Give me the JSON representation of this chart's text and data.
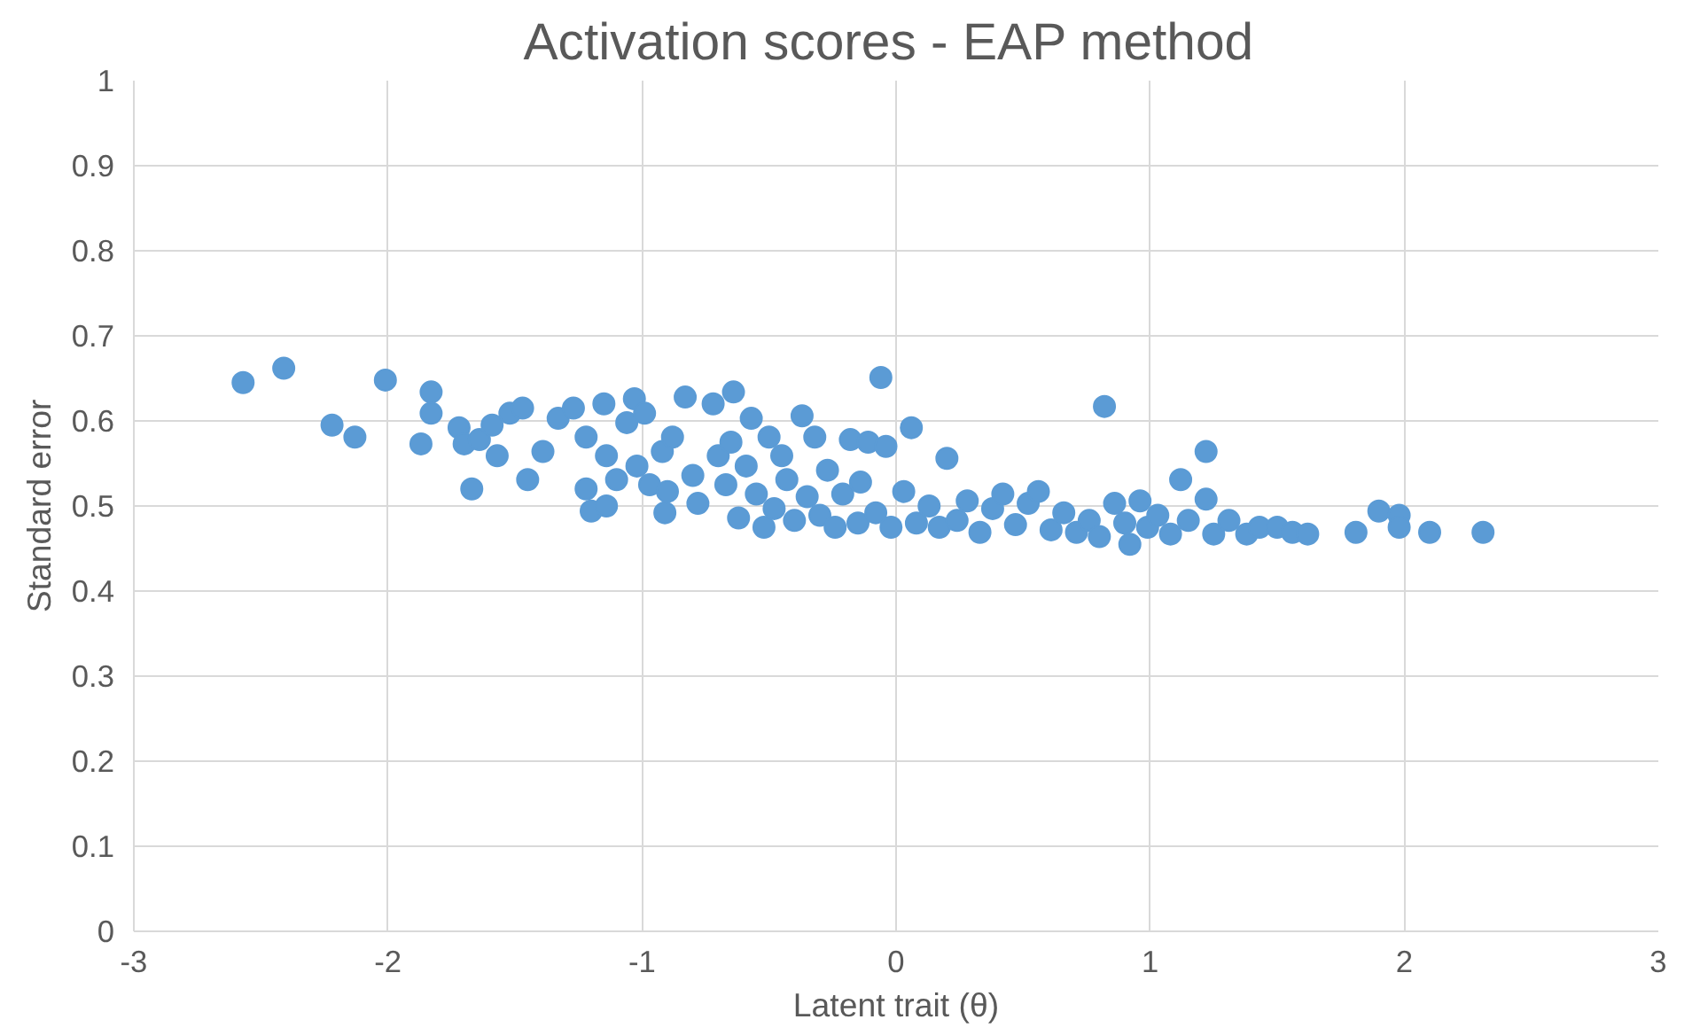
{
  "chart_data": {
    "type": "scatter",
    "title": "Activation scores  - EAP method",
    "xlabel": "Latent trait (θ)",
    "ylabel": "Standard error",
    "xlim": [
      -3,
      3
    ],
    "xticks": [
      -3,
      -2,
      -1,
      0,
      1,
      2,
      3
    ],
    "ylim": [
      0,
      1
    ],
    "yticks": [
      0,
      0.1,
      0.2,
      0.3,
      0.4,
      0.5,
      0.6,
      0.7,
      0.8,
      0.9,
      1
    ],
    "grid": true,
    "marker": "circle",
    "series": [
      {
        "color": "#5b9bd5",
        "x": [
          -2.57,
          -2.41,
          -2.22,
          -2.13,
          -2.01,
          -1.87,
          -1.83,
          -1.83,
          -1.72,
          -1.7,
          -1.67,
          -1.64,
          -1.59,
          -1.57,
          -1.52,
          -1.47,
          -1.45,
          -1.39,
          -1.33,
          -1.27,
          -1.22,
          -1.22,
          -1.2,
          -1.15,
          -1.14,
          -1.1,
          -1.14,
          -1.06,
          -1.02,
          -1.03,
          -0.99,
          -0.97,
          -0.92,
          -0.91,
          -0.9,
          -0.88,
          -0.83,
          -0.8,
          -0.78,
          -0.72,
          -0.7,
          -0.67,
          -0.65,
          -0.64,
          -0.62,
          -0.59,
          -0.57,
          -0.55,
          -0.52,
          -0.5,
          -0.48,
          -0.45,
          -0.43,
          -0.4,
          -0.37,
          -0.35,
          -0.32,
          -0.3,
          -0.27,
          -0.24,
          -0.21,
          -0.18,
          -0.15,
          -0.14,
          -0.11,
          -0.08,
          -0.06,
          -0.04,
          -0.02,
          0.03,
          0.06,
          0.08,
          0.13,
          0.17,
          0.2,
          0.24,
          0.28,
          0.33,
          0.38,
          0.42,
          0.47,
          0.52,
          0.56,
          0.61,
          0.66,
          0.71,
          0.76,
          0.8,
          0.82,
          0.86,
          0.9,
          0.92,
          0.96,
          0.99,
          1.03,
          1.08,
          1.12,
          1.15,
          1.22,
          1.22,
          1.25,
          1.31,
          1.38,
          1.43,
          1.5,
          1.56,
          1.62,
          1.81,
          1.9,
          1.98,
          1.98,
          2.1,
          2.31
        ],
        "values": [
          0.645,
          0.662,
          0.595,
          0.581,
          0.648,
          0.573,
          0.634,
          0.609,
          0.592,
          0.573,
          0.52,
          0.578,
          0.595,
          0.559,
          0.609,
          0.615,
          0.531,
          0.564,
          0.603,
          0.615,
          0.581,
          0.52,
          0.494,
          0.62,
          0.559,
          0.531,
          0.5,
          0.598,
          0.547,
          0.626,
          0.609,
          0.525,
          0.564,
          0.492,
          0.517,
          0.581,
          0.628,
          0.536,
          0.503,
          0.62,
          0.559,
          0.525,
          0.575,
          0.634,
          0.486,
          0.547,
          0.603,
          0.514,
          0.475,
          0.581,
          0.497,
          0.559,
          0.531,
          0.483,
          0.606,
          0.511,
          0.581,
          0.489,
          0.542,
          0.475,
          0.514,
          0.578,
          0.48,
          0.528,
          0.575,
          0.492,
          0.651,
          0.57,
          0.475,
          0.517,
          0.592,
          0.48,
          0.5,
          0.475,
          0.556,
          0.483,
          0.506,
          0.469,
          0.497,
          0.514,
          0.478,
          0.503,
          0.517,
          0.472,
          0.492,
          0.469,
          0.483,
          0.464,
          0.617,
          0.503,
          0.48,
          0.455,
          0.506,
          0.475,
          0.489,
          0.467,
          0.531,
          0.483,
          0.564,
          0.508,
          0.467,
          0.483,
          0.467,
          0.475,
          0.475,
          0.469,
          0.467,
          0.469,
          0.494,
          0.489,
          0.475,
          0.469,
          0.469
        ]
      }
    ]
  }
}
